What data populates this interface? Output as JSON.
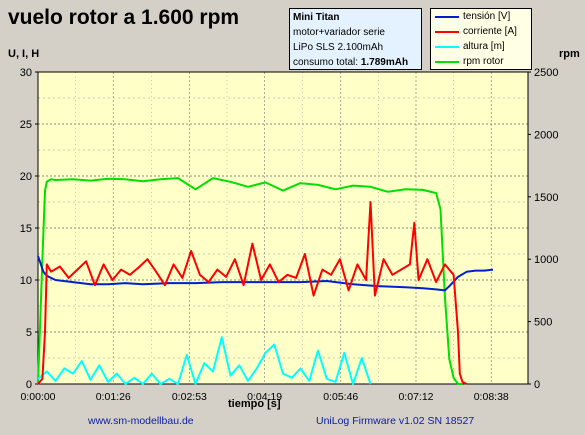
{
  "chart_data": {
    "type": "line",
    "title": "vuelo rotor a 1.600 rpm",
    "xlabel": "tiempo [s]",
    "ylabel_left": "U, I, H",
    "ylabel_right": "rpm",
    "xlim": [
      0,
      560
    ],
    "ylim_left": [
      0,
      30
    ],
    "ylim_right": [
      0,
      2500
    ],
    "grid": true,
    "x_ticks": [
      {
        "t": 0,
        "label": "0:00:00"
      },
      {
        "t": 86,
        "label": "0:01:26"
      },
      {
        "t": 173,
        "label": "0:02:53"
      },
      {
        "t": 259,
        "label": "0:04:19"
      },
      {
        "t": 346,
        "label": "0:05:46"
      },
      {
        "t": 432,
        "label": "0:07:12"
      },
      {
        "t": 518,
        "label": "0:08:38"
      }
    ],
    "y_ticks_left": [
      "0",
      "5",
      "10",
      "15",
      "20",
      "25",
      "30"
    ],
    "y_ticks_right": [
      "0",
      "500",
      "1000",
      "1500",
      "2000",
      "2500"
    ],
    "legend_position": "top-right",
    "series": [
      {
        "name": "tensión [V]",
        "color": "#0020d0",
        "axis": "left",
        "x": [
          0,
          3,
          6,
          10,
          20,
          40,
          60,
          80,
          100,
          120,
          150,
          180,
          210,
          240,
          270,
          300,
          330,
          360,
          390,
          420,
          440,
          455,
          465,
          470,
          480,
          490,
          500,
          510,
          520
        ],
        "y": [
          12.3,
          11.6,
          10.8,
          10.4,
          10.0,
          9.8,
          9.6,
          9.6,
          9.7,
          9.6,
          9.7,
          9.7,
          9.8,
          9.8,
          9.8,
          9.8,
          9.9,
          9.6,
          9.4,
          9.3,
          9.2,
          9.1,
          9.0,
          9.4,
          10.3,
          10.8,
          10.9,
          10.9,
          11.0
        ]
      },
      {
        "name": "corriente [A]",
        "color": "#ff0000",
        "axis": "left",
        "x": [
          0,
          5,
          8,
          10,
          15,
          25,
          35,
          45,
          55,
          65,
          75,
          85,
          95,
          105,
          115,
          125,
          135,
          145,
          155,
          165,
          175,
          185,
          195,
          205,
          215,
          225,
          235,
          245,
          255,
          265,
          275,
          285,
          295,
          305,
          315,
          325,
          335,
          345,
          355,
          365,
          375,
          380,
          385,
          395,
          405,
          415,
          425,
          430,
          435,
          445,
          455,
          465,
          475,
          480,
          482,
          485,
          490
        ],
        "y": [
          0,
          0.5,
          5,
          11.5,
          10.8,
          11.3,
          10.2,
          11.0,
          11.8,
          9.5,
          11.5,
          10.0,
          11.0,
          10.5,
          11.2,
          12.0,
          10.8,
          9.5,
          11.5,
          10.2,
          12.8,
          10.5,
          9.8,
          11.0,
          10.3,
          12.0,
          9.5,
          13.5,
          10.0,
          11.5,
          9.8,
          10.5,
          10.2,
          12.5,
          8.5,
          11.0,
          10.5,
          12.0,
          9.0,
          11.5,
          10.0,
          17.5,
          8.5,
          12.0,
          10.5,
          11.0,
          11.5,
          15.5,
          10.0,
          12.0,
          9.8,
          11.5,
          10.5,
          5.0,
          1.0,
          0.2,
          0
        ]
      },
      {
        "name": "altura [m]",
        "color": "#00ffff",
        "axis": "left",
        "x": [
          0,
          10,
          20,
          30,
          40,
          50,
          60,
          70,
          80,
          90,
          100,
          110,
          120,
          130,
          140,
          150,
          160,
          170,
          180,
          190,
          200,
          210,
          220,
          230,
          240,
          250,
          260,
          270,
          280,
          290,
          300,
          310,
          320,
          330,
          340,
          350,
          360,
          370,
          380
        ],
        "y": [
          0.5,
          1.2,
          0.3,
          1.5,
          1.0,
          2.2,
          0.4,
          1.8,
          0.2,
          1.0,
          0.0,
          0.6,
          0.0,
          1.0,
          0.0,
          0.5,
          0.0,
          2.8,
          0.0,
          2.0,
          1.2,
          4.5,
          0.8,
          1.8,
          0.3,
          1.5,
          3.0,
          3.8,
          1.0,
          0.6,
          1.5,
          0.3,
          3.2,
          0.5,
          0.2,
          3.0,
          0.0,
          2.5,
          0.0
        ]
      },
      {
        "name": "rpm rotor",
        "color": "#00e000",
        "axis": "right",
        "x": [
          0,
          5,
          8,
          10,
          12,
          15,
          20,
          40,
          60,
          80,
          100,
          120,
          140,
          160,
          180,
          200,
          220,
          240,
          260,
          280,
          300,
          320,
          340,
          360,
          380,
          400,
          420,
          440,
          455,
          460,
          465,
          470,
          475,
          480,
          485
        ],
        "y": [
          0,
          1000,
          1550,
          1620,
          1630,
          1640,
          1635,
          1640,
          1630,
          1645,
          1640,
          1625,
          1640,
          1650,
          1560,
          1650,
          1620,
          1580,
          1615,
          1550,
          1610,
          1595,
          1560,
          1590,
          1580,
          1540,
          1560,
          1555,
          1530,
          1400,
          700,
          200,
          50,
          0,
          0
        ]
      }
    ]
  },
  "infobox": {
    "line1": "Mini Titan",
    "line2": "motor+variador serie",
    "line3": "LiPo SLS 2.100mAh",
    "line4_label": "consumo total:",
    "line4_value": "1.789mAh"
  },
  "footer": {
    "website": "www.sm-modellbau.de",
    "firmware": "UniLog Firmware v1.02 SN 18527"
  },
  "colors": {
    "plot_bg": "#ffffc8",
    "window_bg": "#d4d0c8",
    "footer_text": "#0a1ca0"
  }
}
